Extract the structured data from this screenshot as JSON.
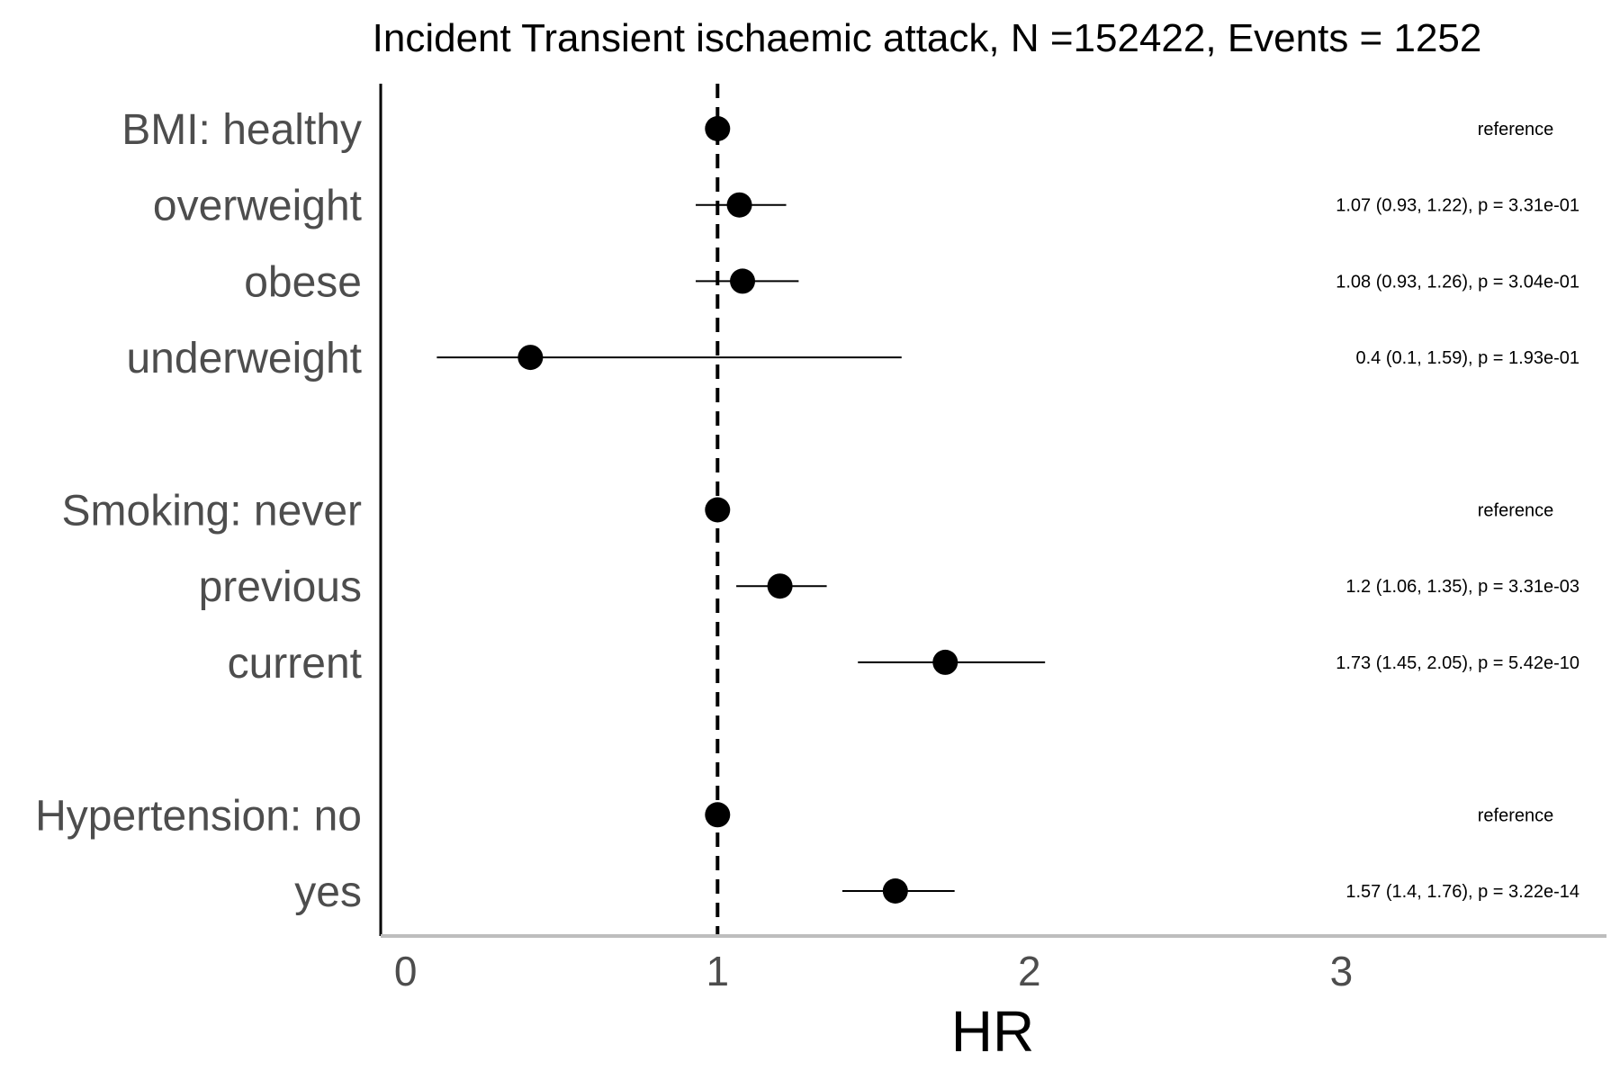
{
  "chart_data": {
    "type": "forest",
    "title": "Incident Transient ischaemic attack, N =152422, Events = 1252",
    "xlabel": "HR",
    "xlim": [
      -0.08,
      3.85
    ],
    "xticks": [
      0,
      1,
      2,
      3
    ],
    "reference_line": 1,
    "rows": [
      {
        "label": "BMI: healthy",
        "hr": 1,
        "lo": null,
        "hi": null,
        "annotation": "reference"
      },
      {
        "label": "overweight",
        "hr": 1.07,
        "lo": 0.93,
        "hi": 1.22,
        "annotation": "1.07 (0.93, 1.22), p = 3.31e-01"
      },
      {
        "label": "obese",
        "hr": 1.08,
        "lo": 0.93,
        "hi": 1.26,
        "annotation": "1.08 (0.93, 1.26), p = 3.04e-01"
      },
      {
        "label": "underweight",
        "hr": 0.4,
        "lo": 0.1,
        "hi": 1.59,
        "annotation": "0.4 (0.1, 1.59), p = 1.93e-01"
      },
      {
        "label": "",
        "hr": null,
        "lo": null,
        "hi": null,
        "annotation": ""
      },
      {
        "label": "Smoking: never",
        "hr": 1,
        "lo": null,
        "hi": null,
        "annotation": "reference"
      },
      {
        "label": "previous",
        "hr": 1.2,
        "lo": 1.06,
        "hi": 1.35,
        "annotation": "1.2 (1.06, 1.35), p = 3.31e-03"
      },
      {
        "label": "current",
        "hr": 1.73,
        "lo": 1.45,
        "hi": 2.05,
        "annotation": "1.73 (1.45, 2.05), p = 5.42e-10"
      },
      {
        "label": "",
        "hr": null,
        "lo": null,
        "hi": null,
        "annotation": ""
      },
      {
        "label": "Hypertension: no",
        "hr": 1,
        "lo": null,
        "hi": null,
        "annotation": "reference"
      },
      {
        "label": "yes",
        "hr": 1.57,
        "lo": 1.4,
        "hi": 1.76,
        "annotation": "1.57 (1.4, 1.76), p = 3.22e-14"
      }
    ]
  }
}
